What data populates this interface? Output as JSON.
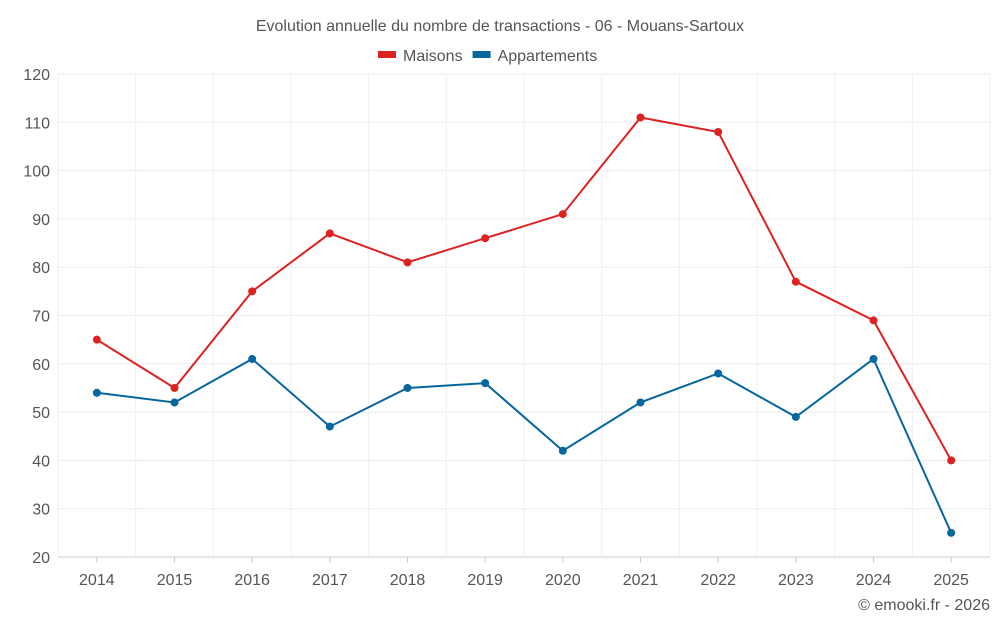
{
  "chart_data": {
    "type": "line",
    "title": "Evolution annuelle du nombre de transactions - 06 - Mouans-Sartoux",
    "categories": [
      "2014",
      "2015",
      "2016",
      "2017",
      "2018",
      "2019",
      "2020",
      "2021",
      "2022",
      "2023",
      "2024",
      "2025"
    ],
    "series": [
      {
        "name": "Maisons",
        "color": "#dd2222",
        "values": [
          65,
          55,
          75,
          87,
          81,
          86,
          91,
          111,
          108,
          77,
          69,
          40
        ]
      },
      {
        "name": "Appartements",
        "color": "#05679e",
        "values": [
          54,
          52,
          61,
          47,
          55,
          56,
          42,
          52,
          58,
          49,
          61,
          25
        ]
      }
    ],
    "ylim": [
      20,
      120
    ],
    "yticks": [
      20,
      30,
      40,
      50,
      60,
      70,
      80,
      90,
      100,
      110,
      120
    ],
    "grid": true,
    "legend": "top-center",
    "credit": "© emooki.fr - 2026"
  }
}
